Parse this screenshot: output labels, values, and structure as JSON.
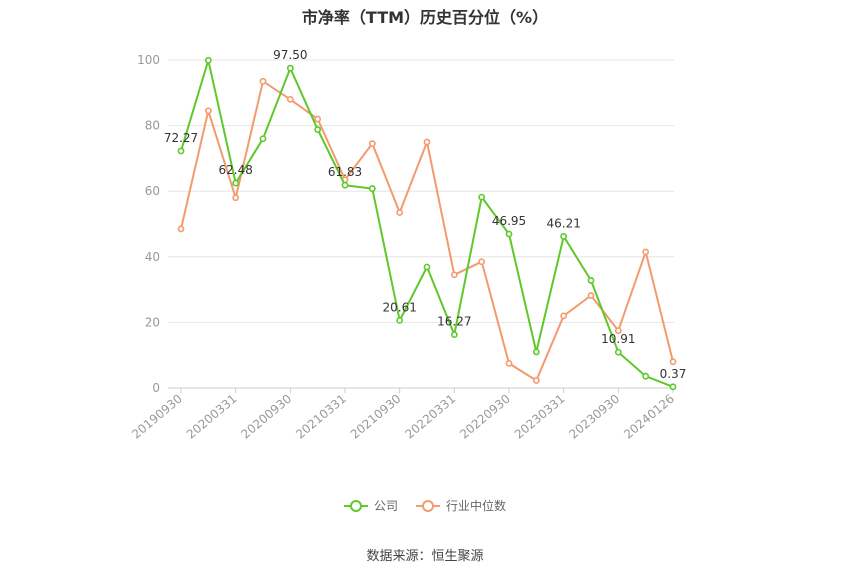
{
  "chart_data": {
    "type": "line",
    "title": "市净率（TTM）历史百分位（%）",
    "source": "数据来源：恒生聚源",
    "ylim": [
      0,
      100
    ],
    "yticks": [
      0,
      20,
      40,
      60,
      80,
      100
    ],
    "grid": true,
    "legend_position": "bottom",
    "x": [
      "20190930",
      "20191231",
      "20200331",
      "20200630",
      "20200930",
      "20201231",
      "20210331",
      "20210630",
      "20210930",
      "20211231",
      "20220331",
      "20220630",
      "20220930",
      "20221230",
      "20230331",
      "20230630",
      "20230930",
      "20231229",
      "20240126"
    ],
    "xtick_labels": [
      "20190930",
      "20200331",
      "20200930",
      "20210331",
      "20210930",
      "20220331",
      "20220930",
      "20230331",
      "20230930",
      "20240126"
    ],
    "series": [
      {
        "name": "公司",
        "color": "#5fc82a",
        "values": [
          72.27,
          99.9,
          62.48,
          76.0,
          97.5,
          78.8,
          61.83,
          60.8,
          20.61,
          36.9,
          16.27,
          58.2,
          46.95,
          11.0,
          46.21,
          32.8,
          10.91,
          3.6,
          0.37
        ],
        "labels": {
          "0": "72.27",
          "2": "62.48",
          "4": "97.50",
          "6": "61.83",
          "8": "20.61",
          "10": "16.27",
          "12": "46.95",
          "14": "46.21",
          "16": "10.91",
          "18": "0.37"
        }
      },
      {
        "name": "行业中位数",
        "color": "#f39a6e",
        "values": [
          48.5,
          84.5,
          58.0,
          93.5,
          88.0,
          82.0,
          63.5,
          74.5,
          53.5,
          75.0,
          34.5,
          38.5,
          7.5,
          2.3,
          22.0,
          28.2,
          17.5,
          41.5,
          8.0
        ]
      }
    ]
  }
}
